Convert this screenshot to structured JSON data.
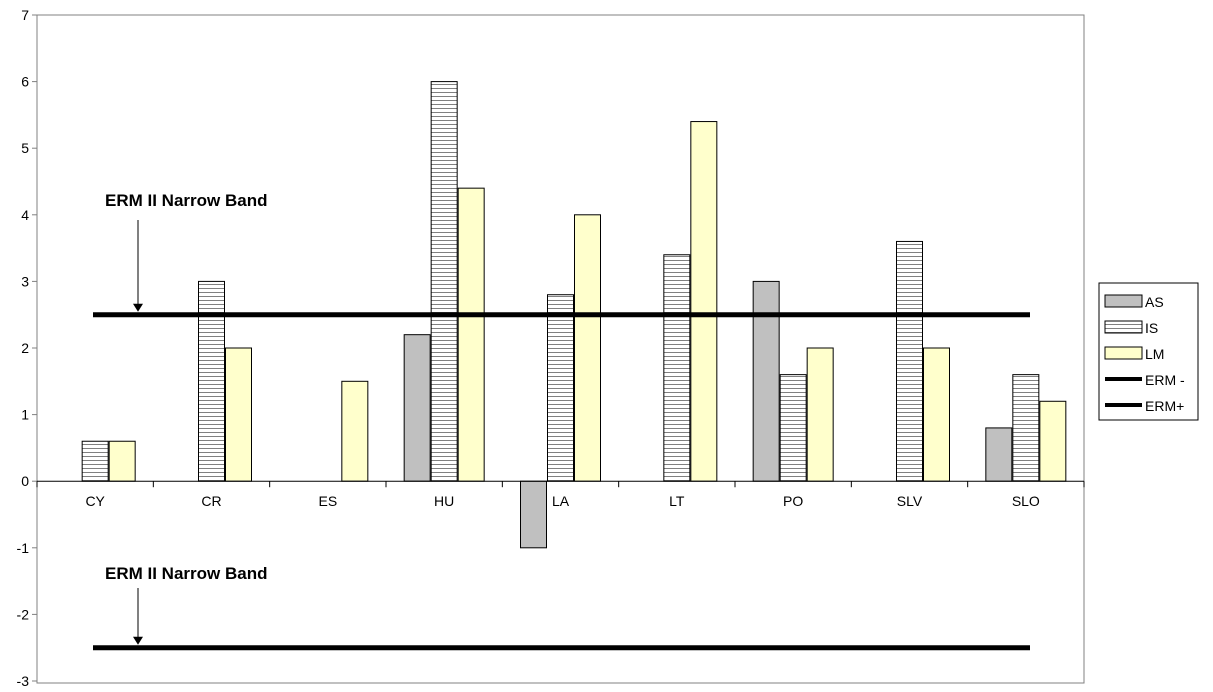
{
  "chart_data": {
    "type": "bar",
    "categories": [
      "CY",
      "CR",
      "ES",
      "HU",
      "LA",
      "LT",
      "PO",
      "SLV",
      "SLO"
    ],
    "series": [
      {
        "name": "AS",
        "values": [
          null,
          null,
          null,
          2.2,
          -1.0,
          null,
          3.0,
          null,
          0.8
        ],
        "color": "#c0c0c0",
        "pattern": "solid"
      },
      {
        "name": "IS",
        "values": [
          0.6,
          3.0,
          null,
          6.0,
          2.8,
          3.4,
          1.6,
          3.6,
          1.6
        ],
        "color": "#ffffff",
        "pattern": "horizontal-stripes"
      },
      {
        "name": "LM",
        "values": [
          0.6,
          2.0,
          1.5,
          4.4,
          4.0,
          5.4,
          2.0,
          2.0,
          1.2
        ],
        "color": "#ffffcc",
        "pattern": "solid"
      }
    ],
    "reference_lines": [
      {
        "name": "ERM -",
        "value": -2.5,
        "color": "#000000"
      },
      {
        "name": "ERM+",
        "value": 2.5,
        "color": "#000000"
      }
    ],
    "annotations": [
      {
        "text": "ERM II Narrow Band",
        "points_to": 2.5
      },
      {
        "text": "ERM II Narrow Band",
        "points_to": -2.5
      }
    ],
    "yticks": [
      "7",
      "6",
      "5",
      "4",
      "3",
      "2",
      "1",
      "0",
      "-1",
      "-2",
      "-3"
    ],
    "ylim": [
      -3,
      7
    ],
    "title": "",
    "xlabel": "",
    "ylabel": "",
    "grid": false,
    "legend_position": "right"
  }
}
